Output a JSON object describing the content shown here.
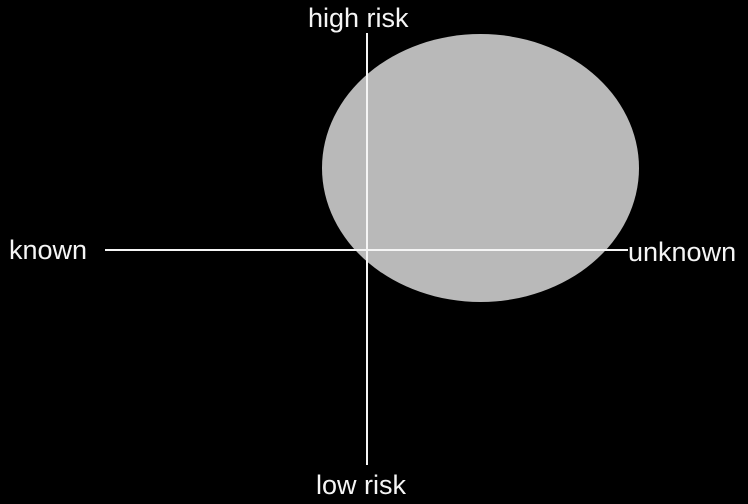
{
  "diagram": {
    "title": "risk quadrant diagram",
    "axis_labels": {
      "top": "high risk",
      "bottom": "low risk",
      "left": "known",
      "right": "unknown"
    },
    "region": {
      "shape": "ellipse",
      "description": "large gray ellipse covering mostly the high-risk / unknown (upper-right) quadrant, slightly overlapping the axes origin"
    },
    "colors": {
      "background": "#000000",
      "ellipse_fill": "#b9b9b9",
      "axis": "#f5f5f5",
      "text": "#f5f5f5"
    }
  }
}
